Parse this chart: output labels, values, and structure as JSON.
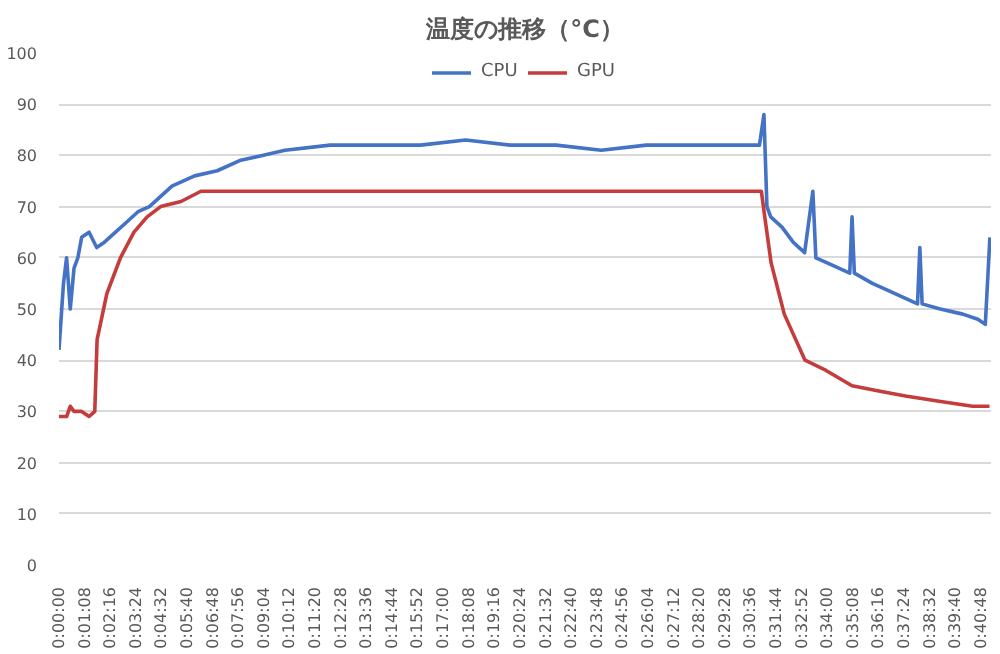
{
  "chart_data": {
    "type": "line",
    "title": "温度の推移（°C）",
    "legend": "top",
    "grid": "y",
    "line_style": "solid",
    "xlim": [
      0,
      0.6875
    ],
    "ylim": [
      0,
      100
    ],
    "yticks": [
      0,
      10,
      20,
      30,
      40,
      50,
      60,
      70,
      80,
      90,
      100
    ],
    "xticks": [
      {
        "value": 0,
        "label": "0:00:00"
      },
      {
        "value": 0.018889,
        "label": "0:01:08"
      },
      {
        "value": 0.037778,
        "label": "0:02:16"
      },
      {
        "value": 0.056667,
        "label": "0:03:24"
      },
      {
        "value": 0.075556,
        "label": "0:04:32"
      },
      {
        "value": 0.094444,
        "label": "0:05:40"
      },
      {
        "value": 0.113333,
        "label": "0:06:48"
      },
      {
        "value": 0.132222,
        "label": "0:07:56"
      },
      {
        "value": 0.151111,
        "label": "0:09:04"
      },
      {
        "value": 0.17,
        "label": "0:10:12"
      },
      {
        "value": 0.188889,
        "label": "0:11:20"
      },
      {
        "value": 0.207778,
        "label": "0:12:28"
      },
      {
        "value": 0.226667,
        "label": "0:13:36"
      },
      {
        "value": 0.245556,
        "label": "0:14:44"
      },
      {
        "value": 0.264444,
        "label": "0:15:52"
      },
      {
        "value": 0.283333,
        "label": "0:17:00"
      },
      {
        "value": 0.302222,
        "label": "0:18:08"
      },
      {
        "value": 0.321111,
        "label": "0:19:16"
      },
      {
        "value": 0.34,
        "label": "0:20:24"
      },
      {
        "value": 0.358889,
        "label": "0:21:32"
      },
      {
        "value": 0.377778,
        "label": "0:22:40"
      },
      {
        "value": 0.396667,
        "label": "0:23:48"
      },
      {
        "value": 0.415556,
        "label": "0:24:56"
      },
      {
        "value": 0.434444,
        "label": "0:26:04"
      },
      {
        "value": 0.453333,
        "label": "0:27:12"
      },
      {
        "value": 0.472222,
        "label": "0:28:20"
      },
      {
        "value": 0.491111,
        "label": "0:29:28"
      },
      {
        "value": 0.51,
        "label": "0:30:36"
      },
      {
        "value": 0.528889,
        "label": "0:31:44"
      },
      {
        "value": 0.547778,
        "label": "0:32:52"
      },
      {
        "value": 0.566667,
        "label": "0:34:00"
      },
      {
        "value": 0.585556,
        "label": "0:35:08"
      },
      {
        "value": 0.604444,
        "label": "0:36:16"
      },
      {
        "value": 0.623333,
        "label": "0:37:24"
      },
      {
        "value": 0.642222,
        "label": "0:38:32"
      },
      {
        "value": 0.661111,
        "label": "0:39:40"
      },
      {
        "value": 0.68,
        "label": "0:40:48"
      }
    ],
    "series": [
      {
        "name": "CPU",
        "color": "#4472c4",
        "x": [
          0,
          0.0033,
          0.0056,
          0.0083,
          0.0111,
          0.0139,
          0.0167,
          0.0222,
          0.0278,
          0.0333,
          0.0417,
          0.05,
          0.0583,
          0.0667,
          0.075,
          0.0833,
          0.1,
          0.1167,
          0.1333,
          0.15,
          0.1667,
          0.2,
          0.2333,
          0.2667,
          0.3,
          0.3333,
          0.3667,
          0.4,
          0.4333,
          0.4667,
          0.5,
          0.5167,
          0.52,
          0.5222,
          0.525,
          0.5333,
          0.5417,
          0.55,
          0.5561,
          0.5583,
          0.5667,
          0.5833,
          0.585,
          0.5867,
          0.6,
          0.6167,
          0.6333,
          0.635,
          0.6367,
          0.65,
          0.6667,
          0.6778,
          0.6833,
          0.6867
        ],
        "values": [
          42,
          55,
          60,
          50,
          58,
          60,
          64,
          65,
          62,
          63,
          65,
          67,
          69,
          70,
          72,
          74,
          76,
          77,
          79,
          80,
          81,
          82,
          82,
          82,
          83,
          82,
          82,
          81,
          82,
          82,
          82,
          82,
          88,
          70,
          68,
          66,
          63,
          61,
          73,
          60,
          59,
          57,
          68,
          57,
          55,
          53,
          51,
          62,
          51,
          50,
          49,
          48,
          47,
          64
        ]
      },
      {
        "name": "GPU",
        "color": "#c43c3c",
        "x": [
          0,
          0.0056,
          0.0083,
          0.0111,
          0.0167,
          0.0222,
          0.0264,
          0.0281,
          0.0353,
          0.0453,
          0.0553,
          0.065,
          0.075,
          0.09,
          0.1047,
          0.2,
          0.3,
          0.4,
          0.5,
          0.5181,
          0.5206,
          0.5253,
          0.535,
          0.5503,
          0.5658,
          0.585,
          0.6047,
          0.6244,
          0.6492,
          0.6739,
          0.6864
        ],
        "values": [
          29,
          29,
          31,
          30,
          30,
          29,
          30,
          44,
          53,
          60,
          65,
          68,
          70,
          71,
          73,
          73,
          73,
          73,
          73,
          73,
          68,
          59,
          49,
          40,
          38,
          35,
          34,
          33,
          32,
          31,
          31
        ]
      }
    ]
  }
}
